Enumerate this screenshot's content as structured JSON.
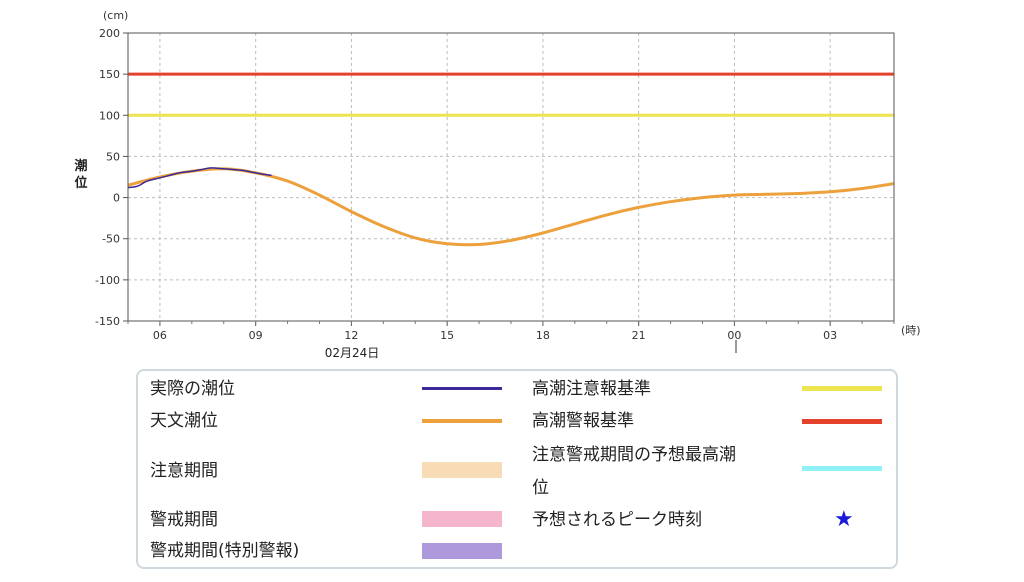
{
  "chart_data": {
    "type": "line",
    "y_unit_label": "(cm)",
    "ylabel": "潮位",
    "x_unit_label": "(時)",
    "date_label": "02月24日",
    "ylim": [
      -150,
      200
    ],
    "y_ticks": [
      200,
      150,
      100,
      50,
      0,
      -50,
      -100,
      -150
    ],
    "x_hours_range": [
      5,
      29
    ],
    "x_ticks": [
      {
        "hour": 6,
        "label": "06"
      },
      {
        "hour": 9,
        "label": "09"
      },
      {
        "hour": 12,
        "label": "12"
      },
      {
        "hour": 15,
        "label": "15"
      },
      {
        "hour": 18,
        "label": "18"
      },
      {
        "hour": 21,
        "label": "21"
      },
      {
        "hour": 24,
        "label": "00"
      },
      {
        "hour": 27,
        "label": "03"
      }
    ],
    "grid": true,
    "thresholds": [
      {
        "name": "高潮警報基準",
        "value": 150,
        "color": "#e4422b"
      },
      {
        "name": "高潮注意報基準",
        "value": 100,
        "color": "#ece450"
      }
    ],
    "series": [
      {
        "name": "天文潮位",
        "color": "#eda13d",
        "x": [
          5,
          6,
          7,
          8,
          9,
          10,
          11,
          12,
          13,
          14,
          15,
          16,
          17,
          18,
          19,
          20,
          21,
          22,
          23,
          24,
          25,
          26,
          27,
          28,
          29
        ],
        "y": [
          15,
          25,
          32,
          35,
          30,
          20,
          3,
          -17,
          -35,
          -49,
          -56,
          -57,
          -52,
          -43,
          -32,
          -21,
          -12,
          -5,
          0,
          3,
          4,
          5,
          7,
          11,
          17
        ]
      },
      {
        "name": "実際の潮位",
        "color": "#3b2a9a",
        "x": [
          5,
          5.3,
          5.6,
          6,
          6.3,
          6.6,
          7,
          7.3,
          7.6,
          8,
          8.3,
          8.6,
          9,
          9.3,
          9.5
        ],
        "y": [
          12,
          14,
          20,
          24,
          27,
          30,
          32,
          34,
          36,
          35,
          34,
          33,
          30,
          28,
          27
        ]
      }
    ]
  },
  "legend": {
    "items": [
      {
        "label": "実際の潮位",
        "color": "#3b2a9a"
      },
      {
        "label": "天文潮位",
        "color": "#eda13d"
      },
      {
        "label": "注意期間",
        "color": "#f8dcb6"
      },
      {
        "label": "警戒期間",
        "color": "#f5b5cc"
      },
      {
        "label": "警戒期間(特別警報)",
        "color": "#ad99dc"
      },
      {
        "label": "高潮注意報基準",
        "color": "#ece450"
      },
      {
        "label": "高潮警報基準",
        "color": "#e4422b"
      },
      {
        "label": "注意警戒期間の予想最高潮",
        "label_line2": "位",
        "color": "#8ff0f6"
      },
      {
        "label": "予想されるピーク時刻",
        "icon": "star-icon",
        "color": "#1a1adb",
        "symbol": "★"
      }
    ]
  }
}
